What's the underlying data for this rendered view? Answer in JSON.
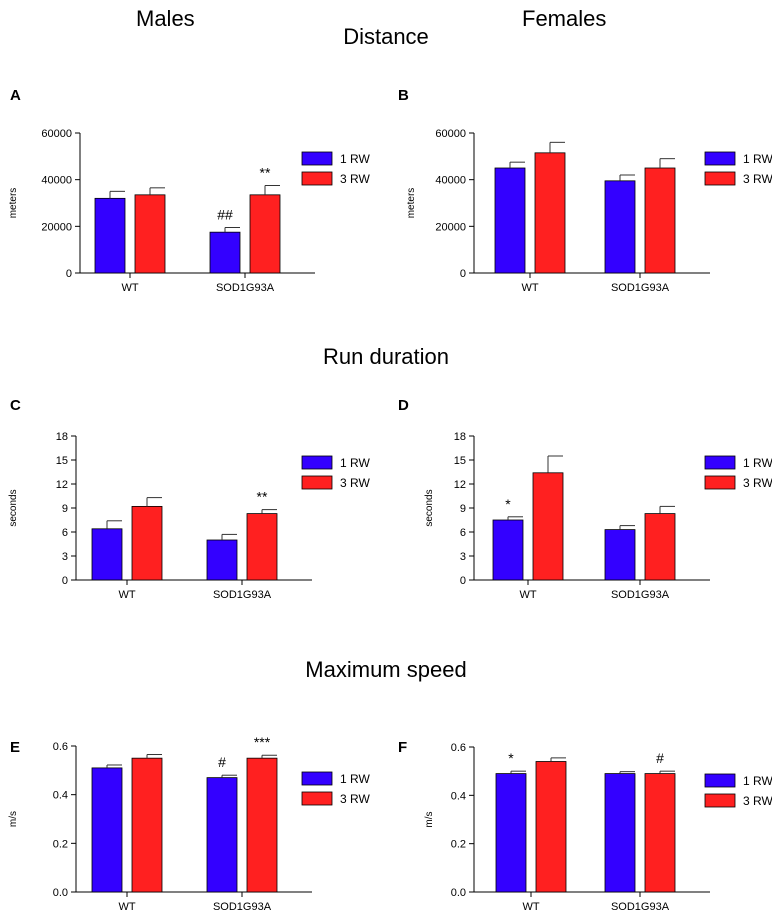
{
  "header": {
    "males": "Males",
    "females": "Females"
  },
  "sections": {
    "distance": "Distance",
    "run_duration": "Run duration",
    "max_speed": "Maximum speed"
  },
  "colors": {
    "rw1": "#3300FF",
    "rw3": "#FF2020"
  },
  "chart_data": [
    {
      "panel": "A",
      "type": "bar",
      "sex": "Males",
      "measure": "Distance",
      "ylabel": "meters",
      "ylim": [
        0,
        60000
      ],
      "yticks": [
        0,
        20000,
        40000,
        60000
      ],
      "categories": [
        "WT",
        "SOD1G93A"
      ],
      "series": [
        {
          "name": "1 RW",
          "values": [
            32000,
            17500
          ],
          "errors": [
            3000,
            2000
          ]
        },
        {
          "name": "3 RW",
          "values": [
            33500,
            33500
          ],
          "errors": [
            3000,
            4000
          ]
        }
      ],
      "annotations": [
        {
          "category": 1,
          "series": 0,
          "text": "##"
        },
        {
          "category": 1,
          "series": 1,
          "text": "**"
        }
      ]
    },
    {
      "panel": "B",
      "type": "bar",
      "sex": "Females",
      "measure": "Distance",
      "ylabel": "meters",
      "ylim": [
        0,
        60000
      ],
      "yticks": [
        0,
        20000,
        40000,
        60000
      ],
      "categories": [
        "WT",
        "SOD1G93A"
      ],
      "series": [
        {
          "name": "1 RW",
          "values": [
            45000,
            39500
          ],
          "errors": [
            2500,
            2500
          ]
        },
        {
          "name": "3 RW",
          "values": [
            51500,
            45000
          ],
          "errors": [
            4500,
            4000
          ]
        }
      ],
      "annotations": []
    },
    {
      "panel": "C",
      "type": "bar",
      "sex": "Males",
      "measure": "Run duration",
      "ylabel": "seconds",
      "ylim": [
        0,
        18
      ],
      "yticks": [
        0,
        3,
        6,
        9,
        12,
        15,
        18
      ],
      "categories": [
        "WT",
        "SOD1G93A"
      ],
      "series": [
        {
          "name": "1 RW",
          "values": [
            6.4,
            5.0
          ],
          "errors": [
            1.0,
            0.7
          ]
        },
        {
          "name": "3 RW",
          "values": [
            9.2,
            8.3
          ],
          "errors": [
            1.1,
            0.5
          ]
        }
      ],
      "annotations": [
        {
          "category": 1,
          "series": 1,
          "text": "**"
        }
      ]
    },
    {
      "panel": "D",
      "type": "bar",
      "sex": "Females",
      "measure": "Run duration",
      "ylabel": "seconds",
      "ylim": [
        0,
        18
      ],
      "yticks": [
        0,
        3,
        6,
        9,
        12,
        15,
        18
      ],
      "categories": [
        "WT",
        "SOD1G93A"
      ],
      "series": [
        {
          "name": "1 RW",
          "values": [
            7.5,
            6.3
          ],
          "errors": [
            0.4,
            0.5
          ]
        },
        {
          "name": "3 RW",
          "values": [
            13.4,
            8.3
          ],
          "errors": [
            2.1,
            0.9
          ]
        }
      ],
      "annotations": [
        {
          "category": 0,
          "series": 0,
          "text": "*"
        }
      ]
    },
    {
      "panel": "E",
      "type": "bar",
      "sex": "Males",
      "measure": "Maximum speed",
      "ylabel": "m/s",
      "ylim": [
        0,
        0.6
      ],
      "yticks": [
        0.0,
        0.2,
        0.4,
        0.6
      ],
      "tick_decimals": 1,
      "categories": [
        "WT",
        "SOD1G93A"
      ],
      "series": [
        {
          "name": "1 RW",
          "values": [
            0.51,
            0.47
          ],
          "errors": [
            0.012,
            0.01
          ]
        },
        {
          "name": "3 RW",
          "values": [
            0.55,
            0.55
          ],
          "errors": [
            0.015,
            0.012
          ]
        }
      ],
      "annotations": [
        {
          "category": 1,
          "series": 0,
          "text": "#"
        },
        {
          "category": 1,
          "series": 1,
          "text": "***"
        }
      ]
    },
    {
      "panel": "F",
      "type": "bar",
      "sex": "Females",
      "measure": "Maximum speed",
      "ylabel": "m/s",
      "ylim": [
        0,
        0.6
      ],
      "yticks": [
        0.0,
        0.2,
        0.4,
        0.6
      ],
      "tick_decimals": 1,
      "categories": [
        "WT",
        "SOD1G93A"
      ],
      "series": [
        {
          "name": "1 RW",
          "values": [
            0.49,
            0.49
          ],
          "errors": [
            0.01,
            0.008
          ]
        },
        {
          "name": "3 RW",
          "values": [
            0.54,
            0.49
          ],
          "errors": [
            0.015,
            0.01
          ]
        }
      ],
      "annotations": [
        {
          "category": 0,
          "series": 0,
          "text": "*"
        },
        {
          "category": 1,
          "series": 1,
          "text": "#"
        }
      ]
    }
  ]
}
